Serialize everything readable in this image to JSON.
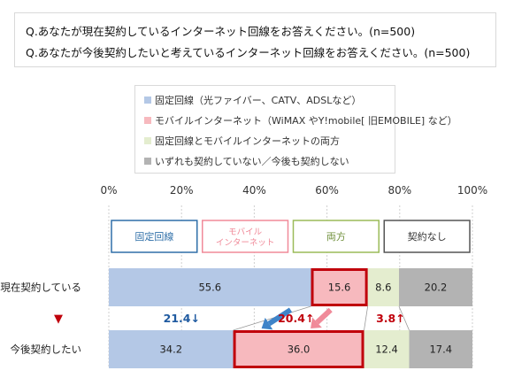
{
  "questions": [
    "Q.あなたが現在契約しているインターネット回線をお答えください。(n=500)",
    "Q.あなたが今後契約したいと考えているインターネット回線をお答えください。(n=500)"
  ],
  "colors": {
    "fixed": "#b4c8e6",
    "mobile": "#f7b9be",
    "both": "#e4edcf",
    "none": "#b3b3b3",
    "highlight_border": "#c0000b",
    "arrow_blue": "#3f84c9",
    "arrow_pink": "#f08a99",
    "label_blue": "#1f5aa0",
    "label_red": "#c0000b"
  },
  "chart_data": {
    "type": "bar",
    "orientation": "horizontal-stacked-100",
    "xlim": [
      0,
      100
    ],
    "x_ticks": [
      "0%",
      "20%",
      "40%",
      "60%",
      "80%",
      "100%"
    ],
    "categories": [
      "現在契約している",
      "今後契約したい"
    ],
    "series": [
      {
        "name": "固定回線（光ファイバー、CATV、ADSLなど）",
        "short": "固定回線",
        "color_key": "fixed",
        "values": [
          55.6,
          34.2
        ]
      },
      {
        "name": "モバイルインターネット（WiMAX やY!mobile[ 旧EMOBILE] など）",
        "short": "モバイル\nインターネット",
        "color_key": "mobile",
        "values": [
          15.6,
          36.0
        ]
      },
      {
        "name": "固定回線とモバイルインターネットの両方",
        "short": "両方",
        "color_key": "both",
        "values": [
          8.6,
          12.4
        ]
      },
      {
        "name": "いずれも契約していない／今後も契約しない",
        "short": "契約なし",
        "color_key": "none",
        "values": [
          20.2,
          17.4
        ]
      }
    ],
    "data_labels": [
      [
        "55.6",
        "15.6",
        "8.6",
        "20.2"
      ],
      [
        "34.2",
        "36.0",
        "12.4",
        "17.4"
      ]
    ],
    "changes": [
      {
        "text": "21.4↓",
        "color_key": "label_blue"
      },
      {
        "text": "20.4↑",
        "color_key": "label_red"
      },
      {
        "text": "3.8↑",
        "color_key": "label_red"
      }
    ],
    "row_marker": "▼",
    "grid": true,
    "legend_position": "top"
  }
}
